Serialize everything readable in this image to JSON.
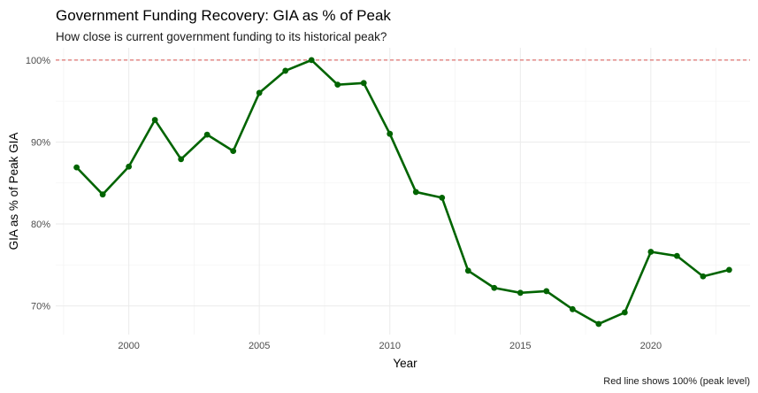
{
  "chart_data": {
    "type": "line",
    "title": "Government Funding Recovery: GIA as % of Peak",
    "subtitle": "How close is current government funding to its historical peak?",
    "xlabel": "Year",
    "ylabel": "GIA as % of Peak GIA",
    "caption": "Red line shows 100% (peak level)",
    "xlim": [
      1997.2,
      2023.8
    ],
    "ylim": [
      66.5,
      101.5
    ],
    "x_ticks": [
      2000,
      2005,
      2010,
      2015,
      2020
    ],
    "x_tick_labels": [
      "2000",
      "2005",
      "2010",
      "2015",
      "2020"
    ],
    "y_ticks": [
      70,
      80,
      90,
      100
    ],
    "y_tick_labels": [
      "70%",
      "80%",
      "90%",
      "100%"
    ],
    "reference_line": {
      "y": 100,
      "color": "#d9534f",
      "style": "dashed"
    },
    "line_color": "#006400",
    "grid": true,
    "series": [
      {
        "x": [
          1998,
          1999,
          2000,
          2001,
          2002,
          2003,
          2004,
          2005,
          2006,
          2007,
          2008,
          2009,
          2010,
          2011,
          2012,
          2013,
          2014,
          2015,
          2016,
          2017,
          2018,
          2019,
          2020,
          2021,
          2022,
          2023
        ],
        "values": [
          86.9,
          83.6,
          87.0,
          92.7,
          87.9,
          90.9,
          88.9,
          96.0,
          98.7,
          100.0,
          97.0,
          97.2,
          91.0,
          83.9,
          83.2,
          74.3,
          72.2,
          71.6,
          71.8,
          69.6,
          67.8,
          69.2,
          76.6,
          76.1,
          73.6,
          74.4
        ]
      }
    ]
  }
}
